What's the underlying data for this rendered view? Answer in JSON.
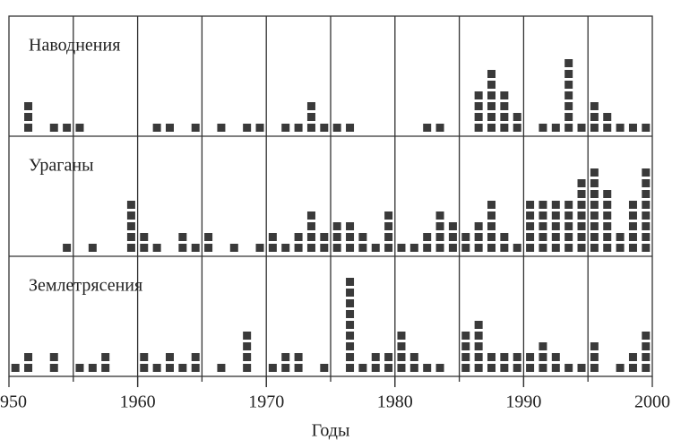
{
  "chart_data": {
    "type": "dot",
    "xlabel": "Годы",
    "x": [
      1950,
      1951,
      1952,
      1953,
      1954,
      1955,
      1956,
      1957,
      1958,
      1959,
      1960,
      1961,
      1962,
      1963,
      1964,
      1965,
      1966,
      1967,
      1968,
      1969,
      1970,
      1971,
      1972,
      1973,
      1974,
      1975,
      1976,
      1977,
      1978,
      1979,
      1980,
      1981,
      1982,
      1983,
      1984,
      1985,
      1986,
      1987,
      1988,
      1989,
      1990,
      1991,
      1992,
      1993,
      1994,
      1995,
      1996,
      1997,
      1998,
      1999
    ],
    "xlim": [
      1950,
      2000
    ],
    "xticks": [
      1950,
      1960,
      1970,
      1980,
      1990,
      2000
    ],
    "color": "#3a3a3a",
    "series": [
      {
        "name": "Наводнения",
        "values": [
          0,
          3,
          0,
          1,
          1,
          1,
          0,
          0,
          0,
          0,
          0,
          1,
          1,
          0,
          1,
          0,
          1,
          0,
          1,
          1,
          0,
          1,
          1,
          3,
          1,
          1,
          1,
          0,
          0,
          0,
          0,
          0,
          1,
          1,
          0,
          0,
          4,
          6,
          4,
          2,
          0,
          1,
          1,
          7,
          1,
          3,
          2,
          1,
          1,
          1
        ]
      },
      {
        "name": "Ураганы",
        "values": [
          0,
          0,
          0,
          0,
          1,
          0,
          1,
          0,
          0,
          5,
          2,
          1,
          0,
          2,
          1,
          2,
          0,
          1,
          0,
          1,
          2,
          1,
          2,
          4,
          2,
          3,
          3,
          2,
          1,
          4,
          1,
          1,
          2,
          4,
          3,
          2,
          3,
          5,
          2,
          1,
          5,
          5,
          5,
          5,
          7,
          8,
          6,
          2,
          5,
          8
        ]
      },
      {
        "name": "Землетрясения",
        "values": [
          1,
          2,
          0,
          2,
          0,
          1,
          1,
          2,
          0,
          0,
          2,
          1,
          2,
          1,
          2,
          0,
          1,
          0,
          4,
          0,
          1,
          2,
          2,
          0,
          1,
          0,
          9,
          1,
          2,
          2,
          4,
          2,
          1,
          1,
          0,
          4,
          5,
          2,
          2,
          2,
          2,
          3,
          2,
          1,
          1,
          3,
          0,
          1,
          2,
          4
        ]
      }
    ]
  }
}
